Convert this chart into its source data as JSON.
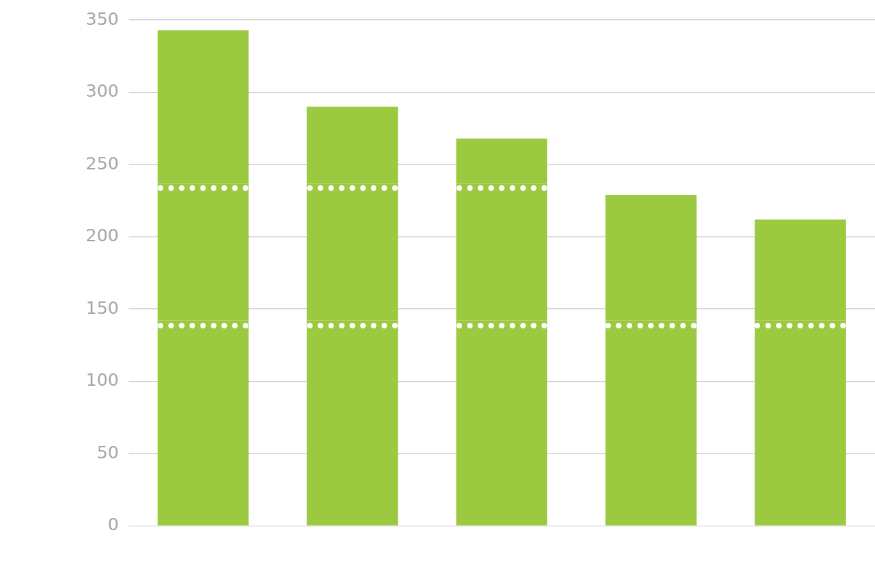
{
  "chart_data": {
    "type": "bar",
    "stacked": true,
    "categories": [
      null,
      null,
      null,
      null,
      null
    ],
    "series": [
      {
        "color": "#9bc93f",
        "values": [
          142,
          142,
          142,
          142,
          142
        ]
      },
      {
        "color": "#9bc93f",
        "values": [
          95,
          95,
          95,
          null,
          null
        ]
      },
      {
        "color": "#9bc93f",
        "values": [
          106,
          53,
          31,
          87,
          70
        ]
      }
    ],
    "ylim": [
      0,
      350
    ],
    "yticks": [
      0,
      50,
      100,
      150,
      200,
      250,
      300,
      350
    ],
    "grid": "y"
  }
}
